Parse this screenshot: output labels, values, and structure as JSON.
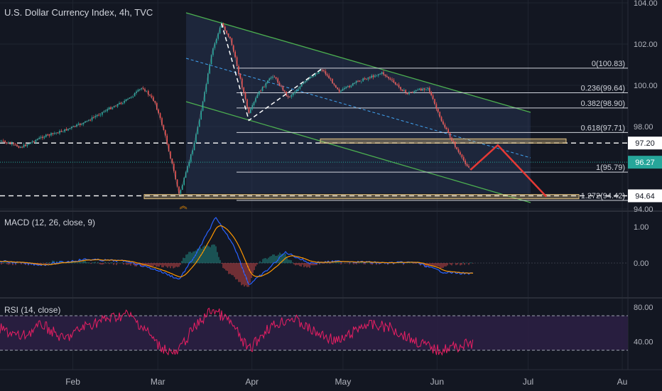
{
  "header": {
    "title": "U.S. Dollar Currency Index, 4h, TVC"
  },
  "colors": {
    "background": "#131722",
    "grid": "#1f2430",
    "candle_up": "#26a69a",
    "candle_down": "#ef5350",
    "channel": "#4caf50",
    "channel_fill": "#2a3a5c",
    "fib": "#d1d4dc",
    "projection": "#e53935",
    "macd_line": "#2962ff",
    "signal_line": "#ff9800",
    "rsi_line": "#e91e63",
    "rsi_band": "#2b1f42",
    "price_badge": "#26a69a",
    "zone": "#e0c080"
  },
  "chart_data": [
    {
      "type": "line",
      "panel": "price",
      "title": "U.S. Dollar Currency Index, 4h, TVC",
      "x_months": [
        "Feb",
        "Mar",
        "Apr",
        "May",
        "Jun",
        "Jul",
        "Au"
      ],
      "y_ticks": [
        "104.00",
        "102.00",
        "100.00",
        "98.00",
        "94.00"
      ],
      "ylim": [
        94,
        104
      ],
      "price_path": [
        {
          "x": "2021-01-08",
          "y": 97.3
        },
        {
          "x": "2021-01-15",
          "y": 97.0
        },
        {
          "x": "2021-01-22",
          "y": 97.5
        },
        {
          "x": "2021-01-29",
          "y": 97.8
        },
        {
          "x": "2021-02-05",
          "y": 98.2
        },
        {
          "x": "2021-02-12",
          "y": 98.8
        },
        {
          "x": "2021-02-19",
          "y": 99.3
        },
        {
          "x": "2021-02-24",
          "y": 99.9
        },
        {
          "x": "2021-02-28",
          "y": 99.2
        },
        {
          "x": "2021-03-03",
          "y": 97.8
        },
        {
          "x": "2021-03-06",
          "y": 96.0
        },
        {
          "x": "2021-03-08",
          "y": 94.7
        },
        {
          "x": "2021-03-10",
          "y": 95.6
        },
        {
          "x": "2021-03-13",
          "y": 97.2
        },
        {
          "x": "2021-03-16",
          "y": 99.3
        },
        {
          "x": "2021-03-19",
          "y": 101.7
        },
        {
          "x": "2021-03-22",
          "y": 103.0
        },
        {
          "x": "2021-03-25",
          "y": 102.2
        },
        {
          "x": "2021-03-28",
          "y": 100.4
        },
        {
          "x": "2021-03-31",
          "y": 98.6
        },
        {
          "x": "2021-04-03",
          "y": 99.6
        },
        {
          "x": "2021-04-08",
          "y": 100.5
        },
        {
          "x": "2021-04-13",
          "y": 99.4
        },
        {
          "x": "2021-04-18",
          "y": 100.1
        },
        {
          "x": "2021-04-24",
          "y": 100.8
        },
        {
          "x": "2021-04-30",
          "y": 99.7
        },
        {
          "x": "2021-05-06",
          "y": 100.2
        },
        {
          "x": "2021-05-14",
          "y": 100.6
        },
        {
          "x": "2021-05-22",
          "y": 99.6
        },
        {
          "x": "2021-05-29",
          "y": 99.9
        },
        {
          "x": "2021-06-02",
          "y": 98.4
        },
        {
          "x": "2021-06-06",
          "y": 97.3
        },
        {
          "x": "2021-06-09",
          "y": 96.5
        },
        {
          "x": "2021-06-12",
          "y": 95.9
        }
      ],
      "fib_levels": [
        {
          "label": "0(100.83)",
          "value": 100.83
        },
        {
          "label": "0.236(99.64)",
          "value": 99.64
        },
        {
          "label": "0.382(98.90)",
          "value": 98.9
        },
        {
          "label": "0.618(97.71)",
          "value": 97.71
        },
        {
          "label": "1(95.79)",
          "value": 95.79
        },
        {
          "label": "1.272(94.42)",
          "value": 94.42
        }
      ],
      "horizontal_levels": [
        {
          "label": "97.20",
          "value": 97.2
        },
        {
          "label": "94.64",
          "value": 94.64
        }
      ],
      "last_price": {
        "label": "96.27",
        "value": 96.27
      },
      "projection_path": [
        {
          "x": "2021-06-12",
          "y": 95.9
        },
        {
          "x": "2021-06-21",
          "y": 97.1
        },
        {
          "x": "2021-07-07",
          "y": 94.6
        }
      ]
    },
    {
      "type": "line",
      "panel": "macd",
      "title": "MACD (12, 26, close, 9)",
      "y_ticks": [
        "1.00",
        "0.00"
      ],
      "ylim": [
        -0.8,
        1.3
      ],
      "macd_path": [
        {
          "x": "2021-01-08",
          "y": 0.05
        },
        {
          "x": "2021-01-22",
          "y": -0.05
        },
        {
          "x": "2021-02-05",
          "y": 0.1
        },
        {
          "x": "2021-02-19",
          "y": 0.05
        },
        {
          "x": "2021-03-01",
          "y": -0.2
        },
        {
          "x": "2021-03-08",
          "y": -0.45
        },
        {
          "x": "2021-03-14",
          "y": 0.3
        },
        {
          "x": "2021-03-20",
          "y": 1.25
        },
        {
          "x": "2021-03-26",
          "y": 0.5
        },
        {
          "x": "2021-03-31",
          "y": -0.6
        },
        {
          "x": "2021-04-06",
          "y": -0.2
        },
        {
          "x": "2021-04-12",
          "y": 0.3
        },
        {
          "x": "2021-04-20",
          "y": 0.0
        },
        {
          "x": "2021-05-01",
          "y": 0.05
        },
        {
          "x": "2021-05-15",
          "y": 0.0
        },
        {
          "x": "2021-05-25",
          "y": 0.02
        },
        {
          "x": "2021-06-03",
          "y": -0.25
        },
        {
          "x": "2021-06-13",
          "y": -0.3
        }
      ]
    },
    {
      "type": "line",
      "panel": "rsi",
      "title": "RSI (14, close)",
      "y_ticks": [
        "80.00",
        "40.00"
      ],
      "ylim": [
        15,
        90
      ],
      "band": [
        30,
        70
      ],
      "rsi_path": [
        {
          "x": "2021-01-08",
          "y": 55
        },
        {
          "x": "2021-01-15",
          "y": 45
        },
        {
          "x": "2021-01-22",
          "y": 60
        },
        {
          "x": "2021-01-29",
          "y": 42
        },
        {
          "x": "2021-02-05",
          "y": 58
        },
        {
          "x": "2021-02-12",
          "y": 66
        },
        {
          "x": "2021-02-19",
          "y": 72
        },
        {
          "x": "2021-02-25",
          "y": 54
        },
        {
          "x": "2021-03-01",
          "y": 36
        },
        {
          "x": "2021-03-07",
          "y": 25
        },
        {
          "x": "2021-03-12",
          "y": 52
        },
        {
          "x": "2021-03-19",
          "y": 78
        },
        {
          "x": "2021-03-25",
          "y": 62
        },
        {
          "x": "2021-03-31",
          "y": 30
        },
        {
          "x": "2021-04-06",
          "y": 55
        },
        {
          "x": "2021-04-14",
          "y": 68
        },
        {
          "x": "2021-04-22",
          "y": 50
        },
        {
          "x": "2021-04-30",
          "y": 40
        },
        {
          "x": "2021-05-08",
          "y": 60
        },
        {
          "x": "2021-05-16",
          "y": 57
        },
        {
          "x": "2021-05-24",
          "y": 42
        },
        {
          "x": "2021-06-01",
          "y": 30
        },
        {
          "x": "2021-06-07",
          "y": 34
        },
        {
          "x": "2021-06-13",
          "y": 38
        }
      ]
    }
  ]
}
